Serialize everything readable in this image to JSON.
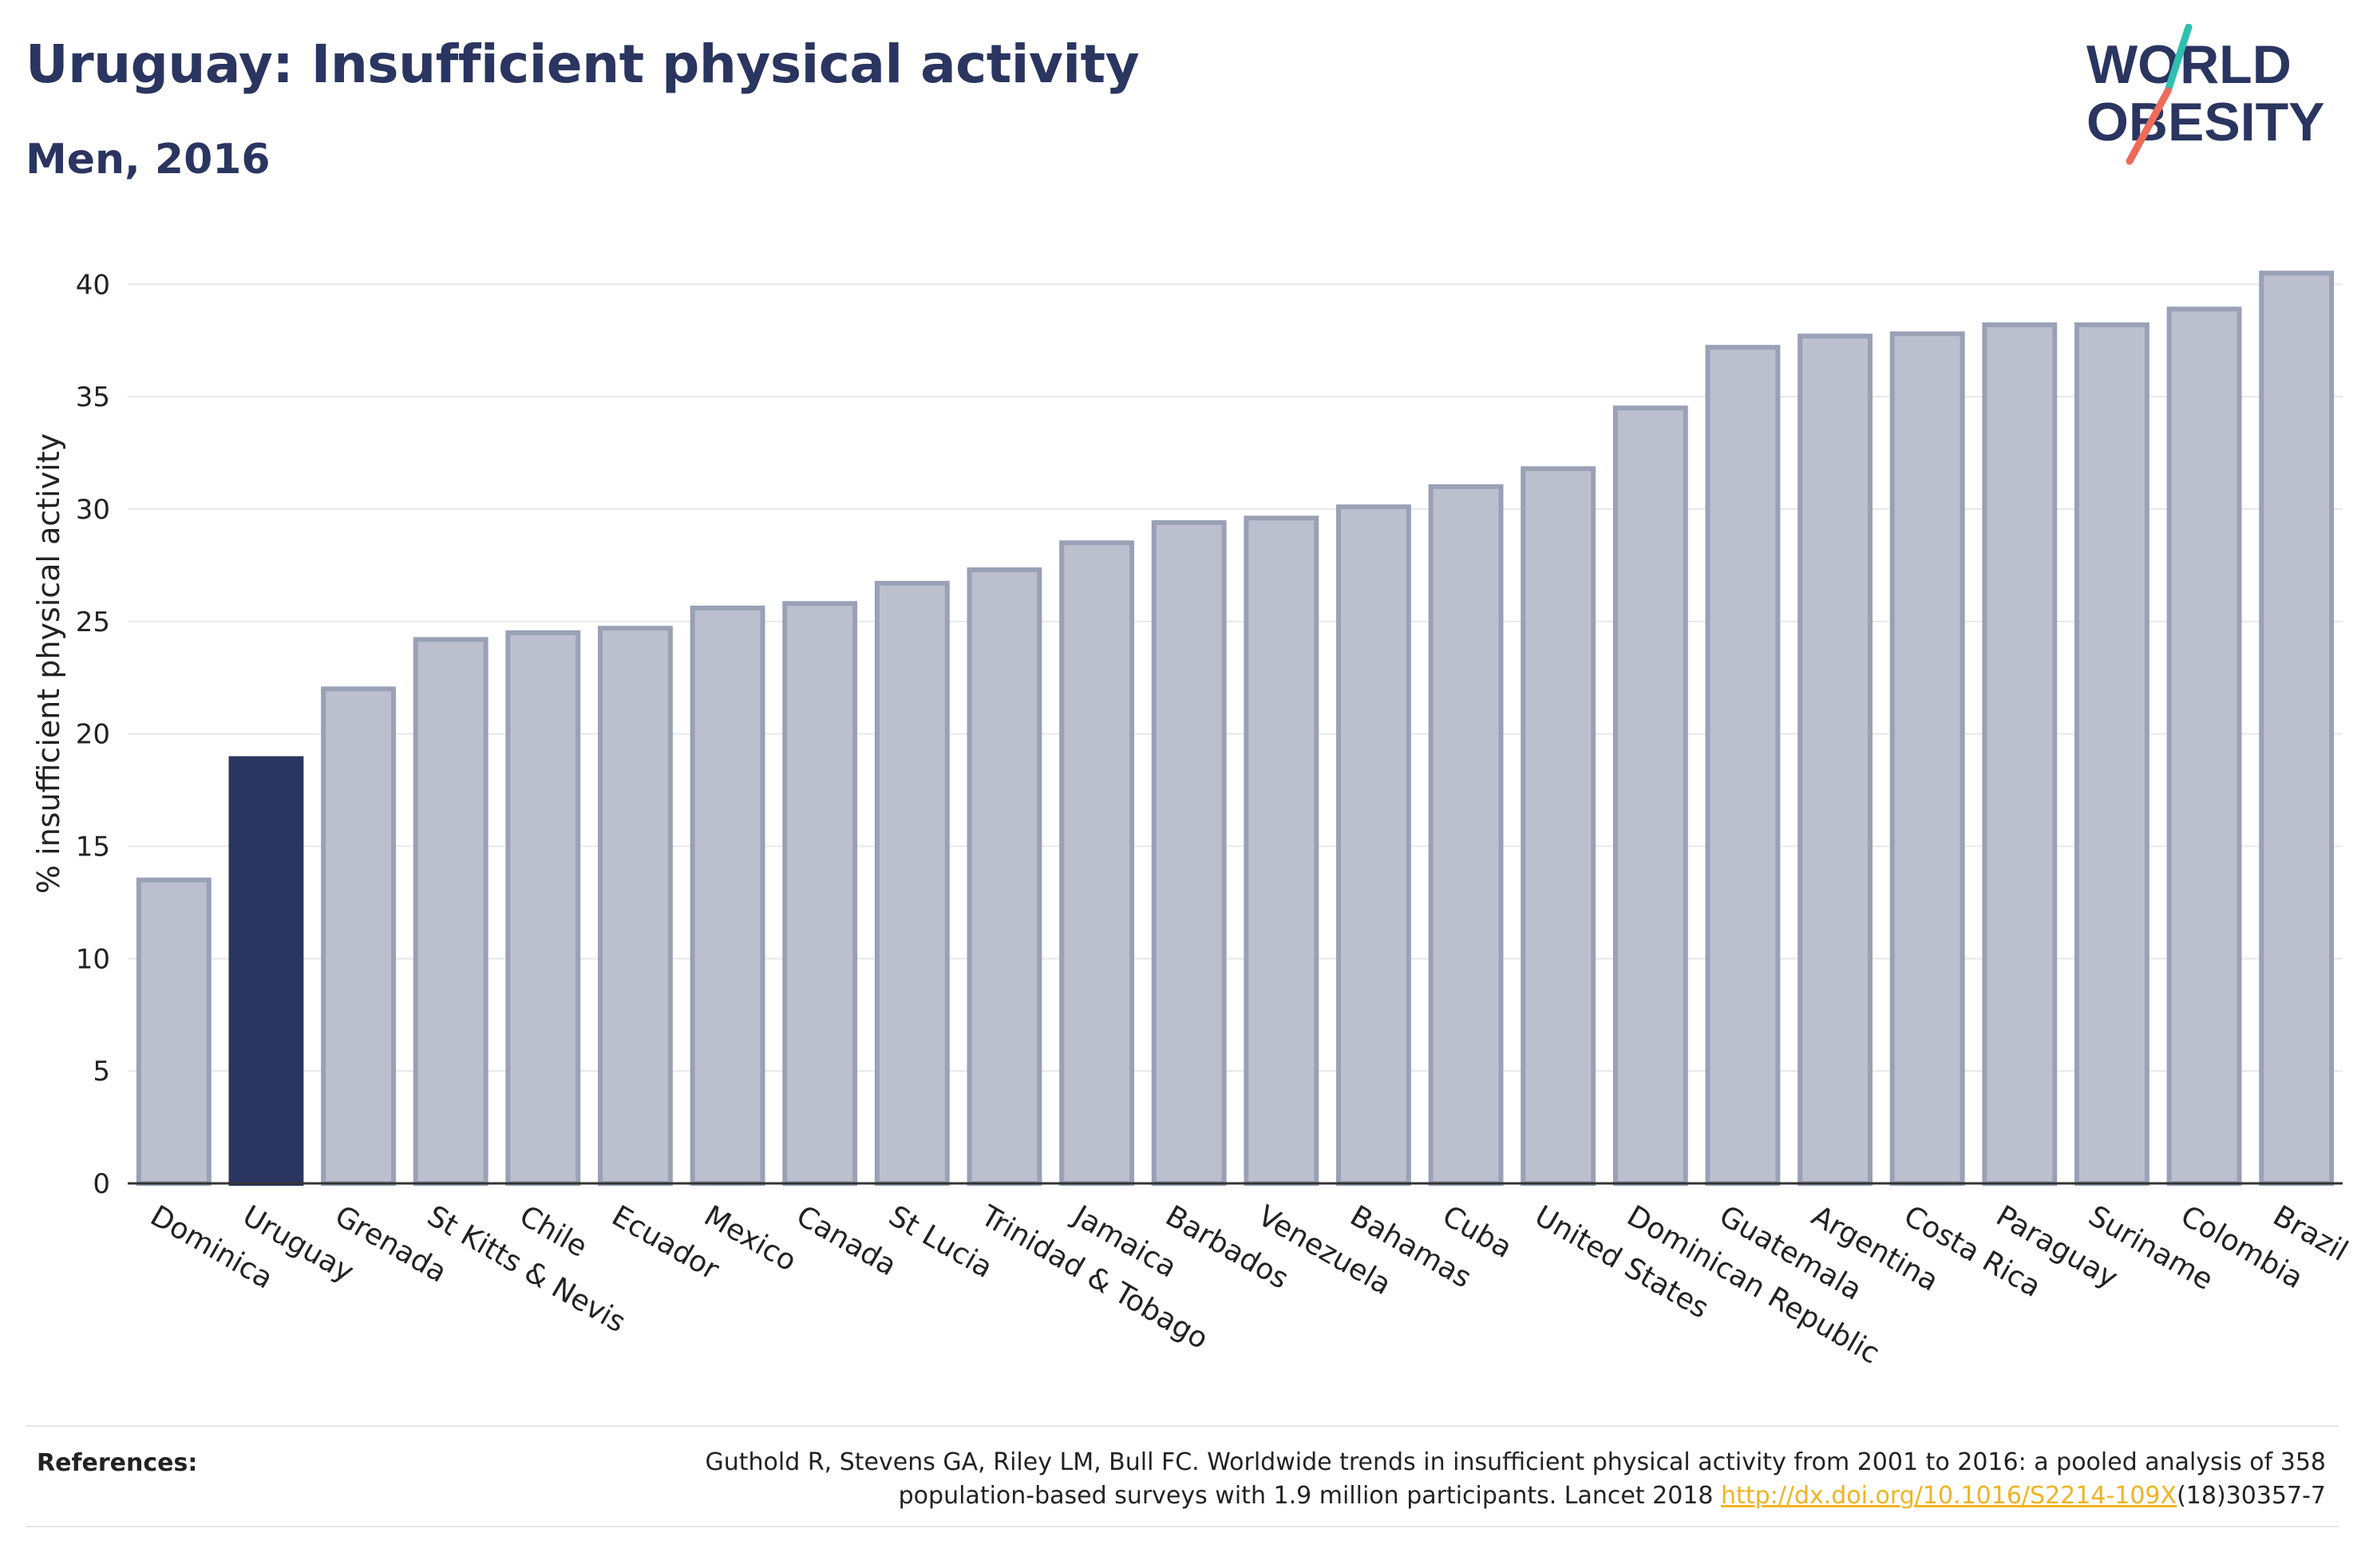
{
  "header": {
    "title": "Uruguay: Insufficient physical activity",
    "subtitle": "Men, 2016"
  },
  "logo": {
    "line1": "WORLD",
    "line2": "OBESITY",
    "colors": {
      "text": "#2a3560",
      "accent_teal": "#2fbfb0",
      "accent_coral": "#ee6b5a"
    }
  },
  "chart_data": {
    "type": "bar",
    "title": "Uruguay: Insufficient physical activity",
    "subtitle": "Men, 2016",
    "xlabel": "",
    "ylabel": "% insufficient physical activity",
    "ylim": [
      0,
      42
    ],
    "yticks": [
      0,
      5,
      10,
      15,
      20,
      25,
      30,
      35,
      40
    ],
    "grid": true,
    "highlight": "Uruguay",
    "colors": {
      "bar": "#bcc0ce",
      "bar_edge": "#9aa0b6",
      "highlight": "#2a3560",
      "grid": "#e8e8e8",
      "axis": "#333333"
    },
    "categories": [
      "Dominica",
      "Uruguay",
      "Grenada",
      "St Kitts & Nevis",
      "Chile",
      "Ecuador",
      "Mexico",
      "Canada",
      "St Lucia",
      "Trinidad & Tobago",
      "Jamaica",
      "Barbados",
      "Venezuela",
      "Bahamas",
      "Cuba",
      "United States",
      "Dominican Republic",
      "Guatemala",
      "Argentina",
      "Costa Rica",
      "Paraguay",
      "Suriname",
      "Colombia",
      "Brazil"
    ],
    "values": [
      13.5,
      18.9,
      22.0,
      24.2,
      24.5,
      24.7,
      25.6,
      25.8,
      26.7,
      27.3,
      28.5,
      29.4,
      29.6,
      30.1,
      31.0,
      31.8,
      34.5,
      37.2,
      37.7,
      37.8,
      38.2,
      38.2,
      38.9,
      40.5
    ]
  },
  "footer": {
    "references_label": "References:",
    "reference_text_1": "Guthold R, Stevens GA, Riley LM, Bull FC. Worldwide trends in insufficient physical activity from 2001 to 2016: a pooled analysis of 358",
    "reference_text_2": "population-based surveys with 1.9 million participants. Lancet 2018 ",
    "reference_link": "http://dx.doi.org/10.1016/S2214-109X",
    "reference_text_3": "(18)30357-7"
  }
}
